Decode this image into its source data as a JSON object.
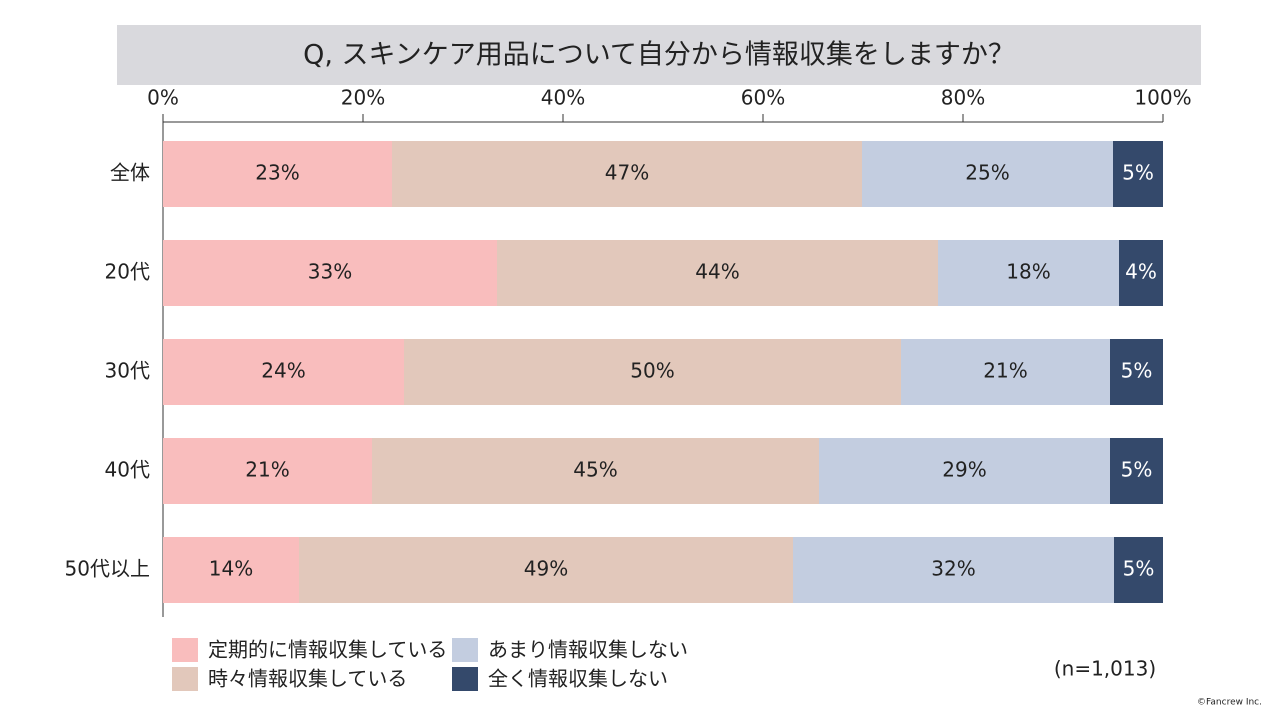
{
  "chart_data": {
    "type": "stacked-bar-horizontal",
    "title": "Q, スキンケア用品について自分から情報収集をしますか？",
    "categories": [
      "全体",
      "20代",
      "30代",
      "40代",
      "50代以上"
    ],
    "series": [
      {
        "name": "定期的に情報収集している",
        "color": "#f9bdbd",
        "values": [
          22.9,
          33.4,
          24.1,
          20.9,
          13.6
        ],
        "value_labels": [
          "23%",
          "33%",
          "24%",
          "21%",
          "14%"
        ]
      },
      {
        "name": "時々情報収集している",
        "color": "#e2c8bb",
        "values": [
          47.0,
          44.1,
          49.7,
          44.7,
          49.4
        ],
        "value_labels": [
          "47%",
          "44%",
          "50%",
          "45%",
          "49%"
        ]
      },
      {
        "name": "あまり情報収集しない",
        "color": "#c3cde0",
        "values": [
          25.1,
          18.1,
          20.9,
          29.1,
          32.1
        ],
        "value_labels": [
          "25%",
          "18%",
          "21%",
          "29%",
          "32%"
        ]
      },
      {
        "name": "全く情報収集しない",
        "color": "#34496b",
        "values": [
          5.0,
          4.4,
          5.3,
          5.3,
          4.9
        ],
        "value_labels": [
          "5%",
          "4%",
          "5%",
          "5%",
          "5%"
        ]
      }
    ],
    "xlim": [
      0,
      100
    ],
    "xticks": [
      {
        "value": 0,
        "label": "0%"
      },
      {
        "value": 20,
        "label": "20%"
      },
      {
        "value": 40,
        "label": "40%"
      },
      {
        "value": 60,
        "label": "60%"
      },
      {
        "value": 80,
        "label": "80%"
      },
      {
        "value": 100,
        "label": "100%"
      }
    ],
    "note": "(n=1,013)",
    "credit": "©Fancrew Inc."
  }
}
